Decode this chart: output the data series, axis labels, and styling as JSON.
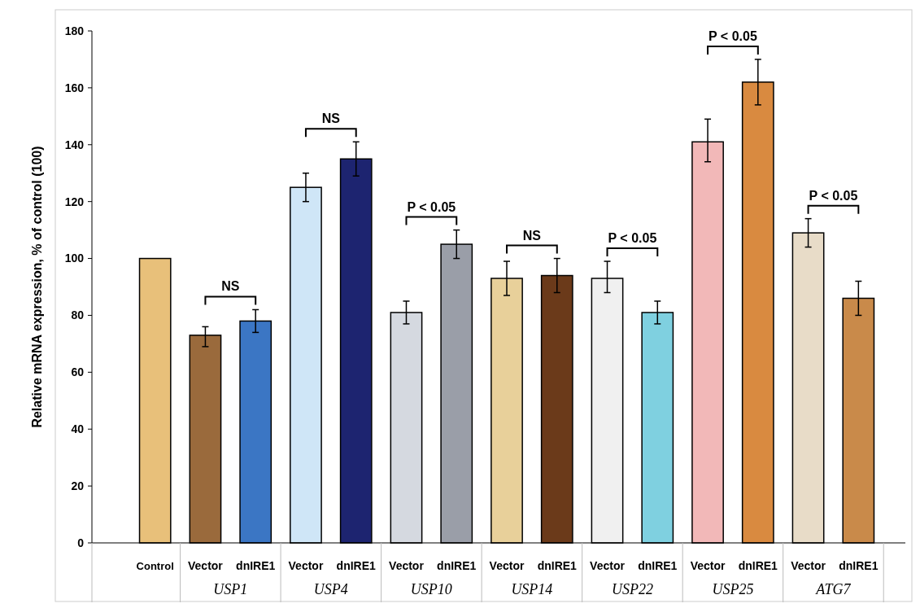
{
  "chart_data": {
    "type": "bar",
    "ylabel": "Relative mRNA expression, % of control (100)",
    "categories": [
      "Control",
      "Vector",
      "dnIRE1",
      "Vector",
      "dnIRE1",
      "Vector",
      "dnIRE1",
      "Vector",
      "dnIRE1",
      "Vector",
      "dnIRE1",
      "Vector",
      "dnIRE1",
      "Vector",
      "dnIRE1"
    ],
    "values": [
      100,
      73,
      78,
      125,
      135,
      81,
      105,
      93,
      94,
      93,
      81,
      141,
      162,
      109,
      86
    ],
    "errors": [
      null,
      [
        69,
        76
      ],
      [
        74,
        82
      ],
      [
        120,
        130
      ],
      [
        129,
        141
      ],
      [
        77,
        85
      ],
      [
        100,
        110
      ],
      [
        87,
        99
      ],
      [
        88,
        100
      ],
      [
        88,
        99
      ],
      [
        77,
        85
      ],
      [
        134,
        149
      ],
      [
        154,
        170
      ],
      [
        104,
        114
      ],
      [
        80,
        92
      ]
    ],
    "colors": [
      "#e8c07a",
      "#9a6a3c",
      "#3b76c4",
      "#cfe6f7",
      "#1d2470",
      "#d5d9e0",
      "#9a9ea8",
      "#e8d09a",
      "#6b3a1a",
      "#f0f0f0",
      "#7fd0e0",
      "#f2b8b8",
      "#d98a40",
      "#e8dcc8",
      "#c98a4a"
    ],
    "ylim": [
      0,
      180
    ],
    "yticks": [
      0,
      20,
      40,
      60,
      80,
      100,
      120,
      140,
      160,
      180
    ],
    "grid": false,
    "annotations": [
      "USP1",
      "USP4",
      "USP10",
      "USP14",
      "USP22",
      "USP25",
      "ATG7",
      "NS",
      "NS",
      "P < 0.05",
      "NS",
      "P < 0.05",
      "P < 0.05",
      "P < 0.05"
    ]
  }
}
